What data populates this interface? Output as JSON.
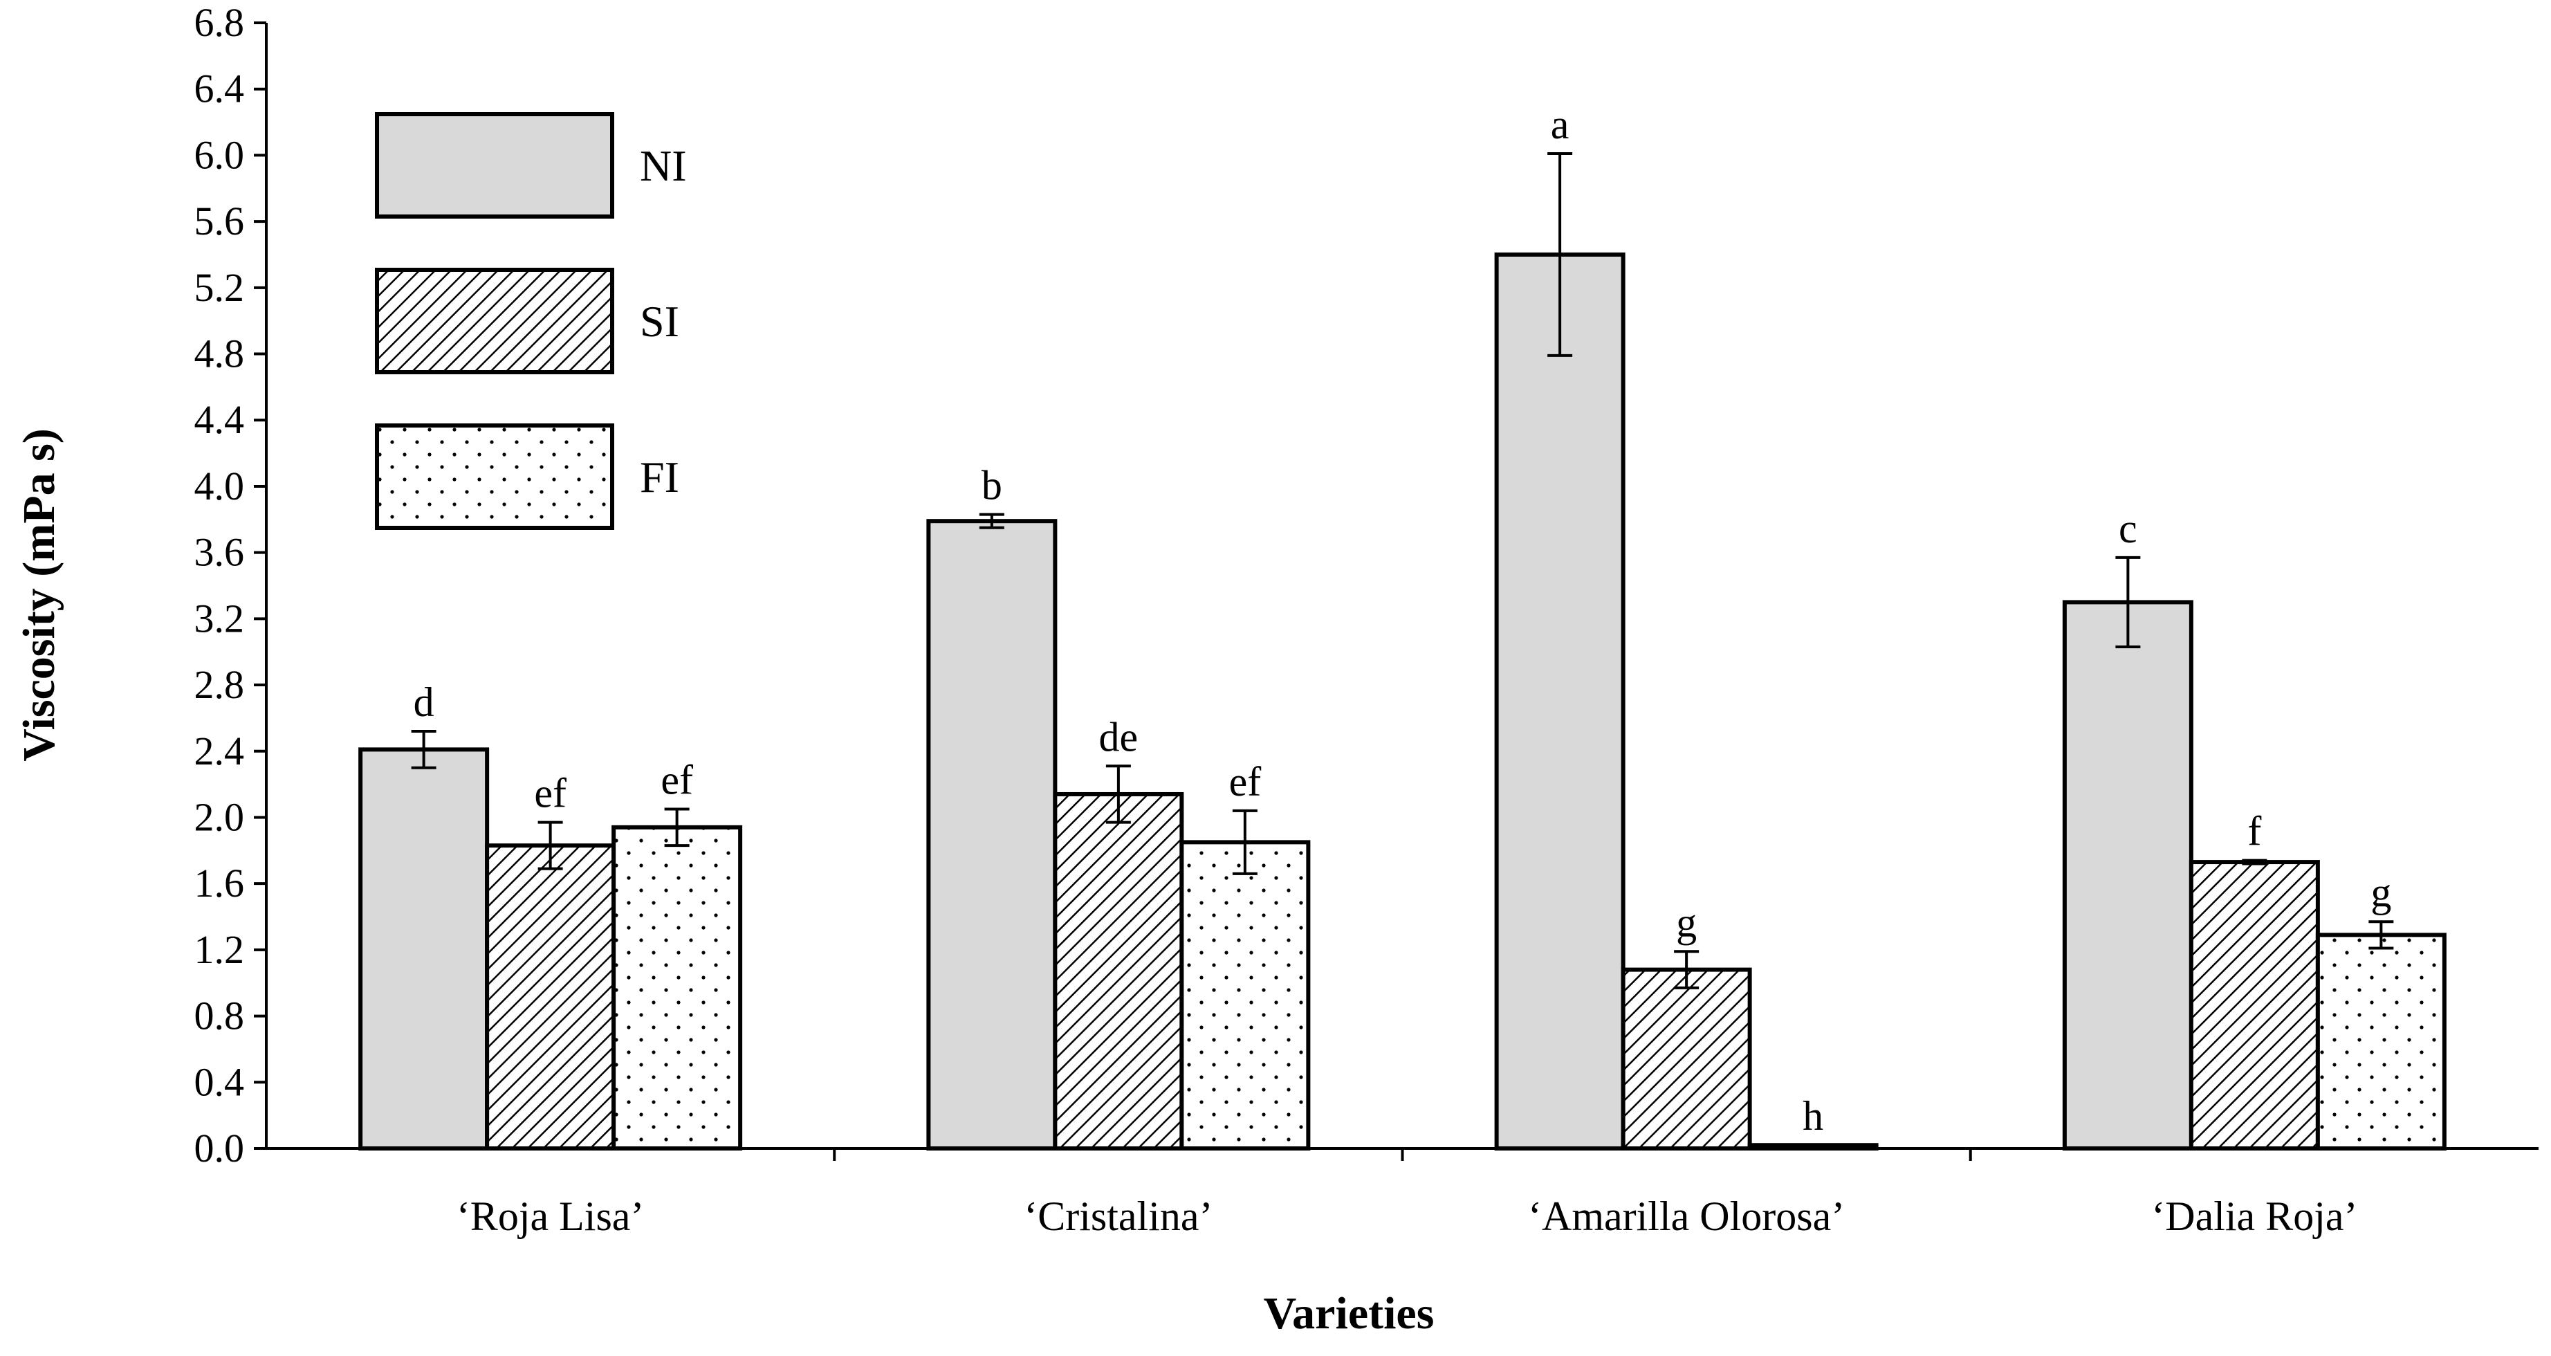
{
  "chart_data": {
    "type": "bar",
    "title": "",
    "xlabel": "Varieties",
    "ylabel": "Viscosity  (mPa s)",
    "ylim": [
      0,
      6.8
    ],
    "ytick_step": 0.4,
    "categories": [
      "‘Roja Lisa’",
      "‘Cristalina’",
      "‘Amarilla Olorosa’",
      "‘Dalia Roja’"
    ],
    "legend_position": "top-left",
    "series": [
      {
        "name": "NI",
        "pattern": "solid",
        "fill": "#d9d9d9",
        "values": [
          2.41,
          3.79,
          5.4,
          3.3
        ],
        "errors": [
          0.11,
          0.04,
          0.61,
          0.27
        ],
        "letters": [
          "d",
          "b",
          "a",
          "c"
        ]
      },
      {
        "name": "SI",
        "pattern": "diagonal-hatch",
        "fill": "#ffffff",
        "values": [
          1.83,
          2.14,
          1.08,
          1.73
        ],
        "errors": [
          0.14,
          0.17,
          0.11,
          0.01
        ],
        "letters": [
          "ef",
          "de",
          "g",
          "f"
        ]
      },
      {
        "name": "FI",
        "pattern": "dots",
        "fill": "#ffffff",
        "values": [
          1.94,
          1.85,
          0.02,
          1.29
        ],
        "errors": [
          0.11,
          0.19,
          0.0,
          0.08
        ],
        "letters": [
          "ef",
          "ef",
          "h",
          "g"
        ]
      }
    ]
  }
}
